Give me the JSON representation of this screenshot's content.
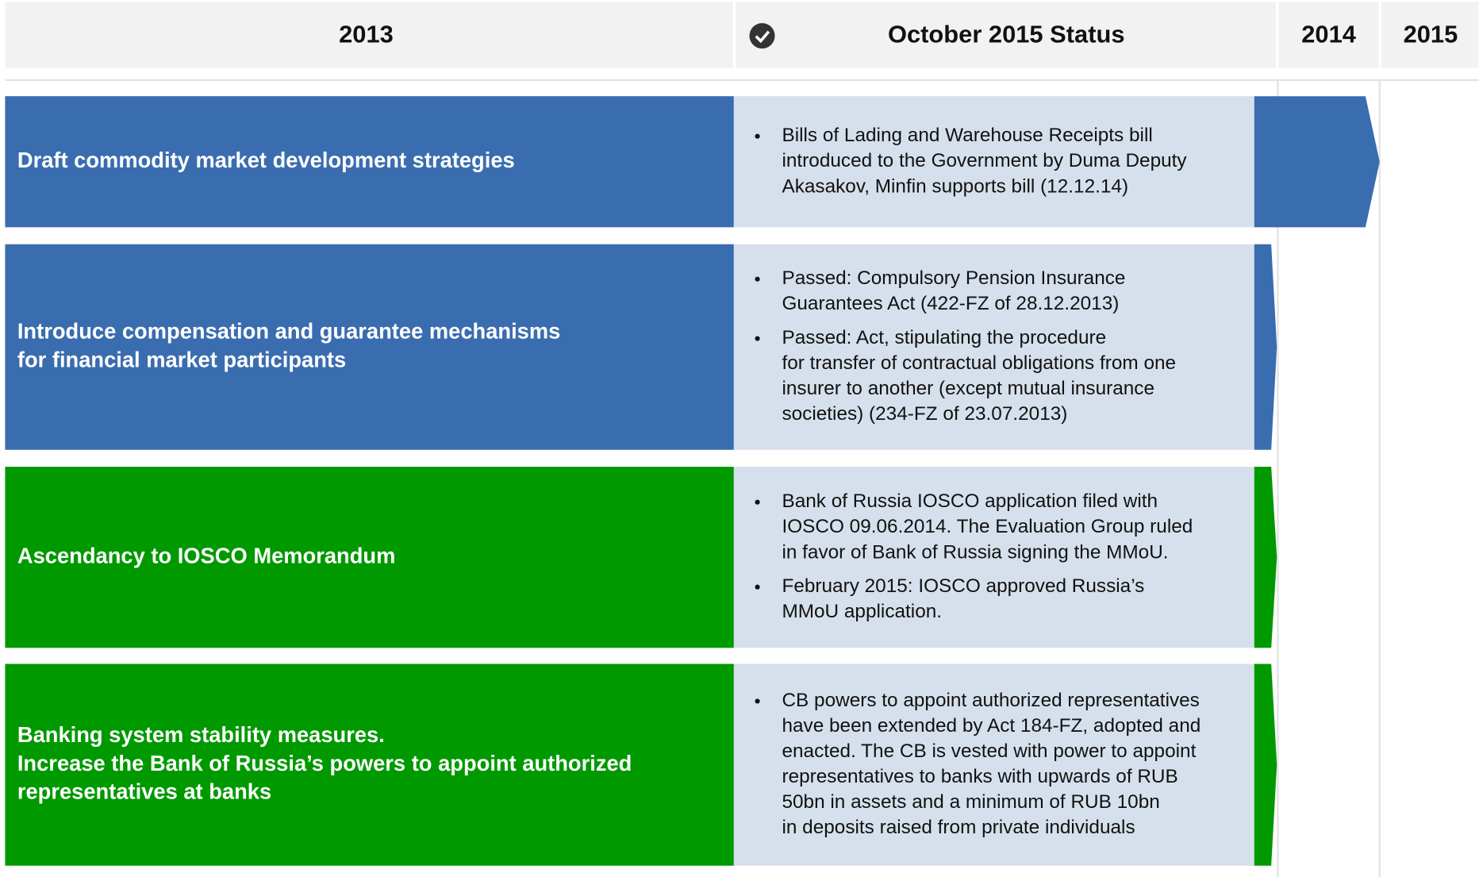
{
  "header": {
    "columns": [
      "2013",
      "October 2015 Status",
      "2014",
      "2015"
    ]
  },
  "rows": [
    {
      "color": "#3a6daf",
      "title": [
        "Draft commodity market development strategies"
      ],
      "bullets": [
        [
          "Bills of Lading and Warehouse Receipts bill",
          "introduced to the Government by Duma Deputy",
          "Akasakov, Minfin supports bill (12.12.14)"
        ]
      ]
    },
    {
      "color": "#3a6daf",
      "title": [
        "Introduce compensation and guarantee mechanisms",
        "for financial market participants"
      ],
      "bullets": [
        [
          "Passed: Compulsory Pension Insurance",
          "Guarantees Act (422-FZ of 28.12.2013)"
        ],
        [
          "Passed: Act, stipulating the procedure",
          "for transfer of contractual obligations from one",
          "insurer to another (except mutual insurance",
          "societies)  (234-FZ of 23.07.2013)"
        ]
      ]
    },
    {
      "color": "#009900",
      "title": [
        "Ascendancy to IOSCO Memorandum"
      ],
      "bullets": [
        [
          "Bank of Russia IOSCO application filed with",
          "IOSCO 09.06.2014. The Evaluation Group ruled",
          "in favor of Bank of Russia signing the MMoU."
        ],
        [
          "February 2015: IOSCO approved Russia’s",
          "MMoU application."
        ]
      ]
    },
    {
      "color": "#009900",
      "title": [
        "Banking system stability measures.",
        "Increase the Bank of Russia’s powers to appoint authorized",
        "representatives at banks"
      ],
      "bullets": [
        [
          "CB powers to appoint authorized representatives",
          "have been extended by Act 184-FZ, adopted and",
          "enacted. The CB is vested with power to appoint",
          "representatives to banks with upwards of RUB",
          "50bn in assets and a minimum of RUB 10bn",
          "in deposits raised from private individuals"
        ]
      ]
    }
  ]
}
